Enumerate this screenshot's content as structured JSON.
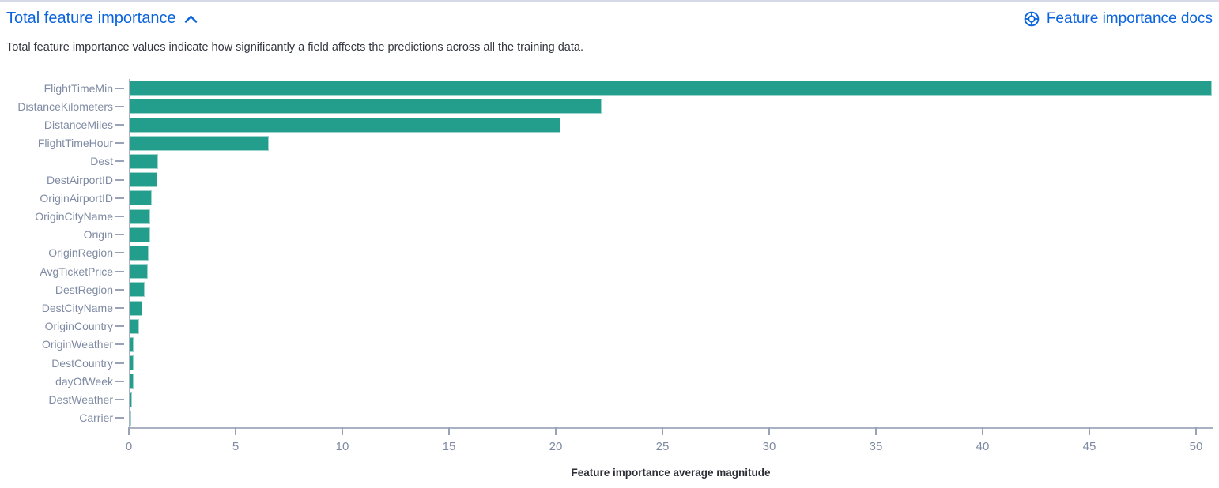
{
  "page": {
    "accent_color": "#0b64dd"
  },
  "header": {
    "title": "Total feature importance",
    "docs_link": "Feature importance docs",
    "description": "Total feature importance values indicate how significantly a field affects the predictions across all the training data."
  },
  "chart_data": {
    "type": "bar",
    "orientation": "horizontal",
    "xlabel": "Feature importance average magnitude",
    "ylabel": "",
    "xlim": [
      0,
      50.7
    ],
    "xticks": [
      0,
      5,
      10,
      15,
      20,
      25,
      30,
      35,
      40,
      45,
      50
    ],
    "grid": false,
    "legend": "none",
    "bar_color": "#249e8c",
    "categories": [
      "FlightTimeMin",
      "DistanceKilometers",
      "DistanceMiles",
      "FlightTimeHour",
      "Dest",
      "DestAirportID",
      "OriginAirportID",
      "OriginCityName",
      "Origin",
      "OriginRegion",
      "AvgTicketPrice",
      "DestRegion",
      "DestCityName",
      "OriginCountry",
      "OriginWeather",
      "DestCountry",
      "dayOfWeek",
      "DestWeather",
      "Carrier"
    ],
    "values": [
      50.7,
      22.1,
      20.2,
      6.5,
      1.35,
      1.3,
      1.05,
      0.95,
      0.95,
      0.9,
      0.85,
      0.7,
      0.6,
      0.45,
      0.2,
      0.18,
      0.18,
      0.12,
      0.05
    ]
  }
}
